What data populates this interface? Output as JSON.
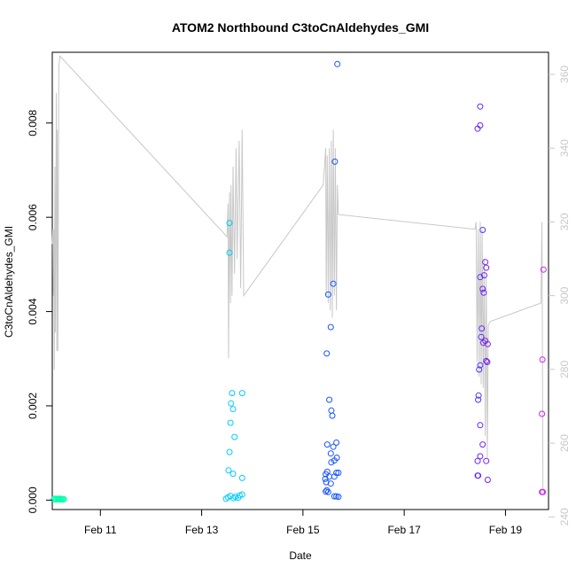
{
  "chart_data": {
    "type": "scatter",
    "title": "ATOM2 Northbound C3toCnAldehydes_GMI",
    "xlabel": "Date",
    "ylabel": "C3toCnAldehydes_GMI",
    "xlim": [
      10.05,
      19.85
    ],
    "ylim": [
      -0.0002,
      0.0095
    ],
    "y2lim": [
      242,
      366
    ],
    "grid": false,
    "legend": "none",
    "x_ticks": [
      {
        "value": 11,
        "label": "Feb 11"
      },
      {
        "value": 13,
        "label": "Feb 13"
      },
      {
        "value": 15,
        "label": "Feb 15"
      },
      {
        "value": 17,
        "label": "Feb 17"
      },
      {
        "value": 19,
        "label": "Feb 19"
      }
    ],
    "y_ticks": [
      {
        "value": 0.0,
        "label": "0.000"
      },
      {
        "value": 0.002,
        "label": "0.002"
      },
      {
        "value": 0.004,
        "label": "0.004"
      },
      {
        "value": 0.006,
        "label": "0.006"
      },
      {
        "value": 0.008,
        "label": "0.008"
      }
    ],
    "y2_ticks": [
      {
        "value": 240,
        "label": "240"
      },
      {
        "value": 260,
        "label": "260"
      },
      {
        "value": 280,
        "label": "280"
      },
      {
        "value": 300,
        "label": "300"
      },
      {
        "value": 320,
        "label": "320"
      },
      {
        "value": 340,
        "label": "340"
      },
      {
        "value": 360,
        "label": "360"
      }
    ],
    "colors": {
      "line": "#c8c8c8",
      "axis": "#000000",
      "right_axis": "#c8c8c8"
    },
    "points": [
      {
        "x": 10.08,
        "y": 2e-05,
        "color": "#00ffb0"
      },
      {
        "x": 10.1,
        "y": 3e-05,
        "color": "#00ffb0"
      },
      {
        "x": 10.12,
        "y": 1e-05,
        "color": "#00ffb0"
      },
      {
        "x": 10.14,
        "y": 2e-05,
        "color": "#00ffb0"
      },
      {
        "x": 10.16,
        "y": 3e-05,
        "color": "#00ffb0"
      },
      {
        "x": 10.18,
        "y": 2e-05,
        "color": "#00ffb0"
      },
      {
        "x": 10.2,
        "y": 1e-05,
        "color": "#00ffb0"
      },
      {
        "x": 10.22,
        "y": 3e-05,
        "color": "#00ffb0"
      },
      {
        "x": 10.24,
        "y": 2e-05,
        "color": "#00ffb0"
      },
      {
        "x": 10.26,
        "y": 1e-05,
        "color": "#00ffb0"
      },
      {
        "x": 10.28,
        "y": 2e-05,
        "color": "#00ffb0"
      },
      {
        "x": 13.55,
        "y": 0.00588,
        "color": "#00ccff"
      },
      {
        "x": 13.55,
        "y": 0.00525,
        "color": "#00ccff"
      },
      {
        "x": 13.6,
        "y": 0.00227,
        "color": "#00ccff"
      },
      {
        "x": 13.58,
        "y": 0.00205,
        "color": "#00ccff"
      },
      {
        "x": 13.62,
        "y": 0.00193,
        "color": "#00ccff"
      },
      {
        "x": 13.57,
        "y": 0.00164,
        "color": "#00ccff"
      },
      {
        "x": 13.65,
        "y": 0.00134,
        "color": "#00ccff"
      },
      {
        "x": 13.55,
        "y": 0.00102,
        "color": "#00ccff"
      },
      {
        "x": 13.53,
        "y": 0.00063,
        "color": "#00ccff"
      },
      {
        "x": 13.62,
        "y": 0.00056,
        "color": "#00ccff"
      },
      {
        "x": 13.8,
        "y": 0.00227,
        "color": "#00ccff"
      },
      {
        "x": 13.8,
        "y": 0.00047,
        "color": "#00ccff"
      },
      {
        "x": 13.48,
        "y": 3e-05,
        "color": "#00ccff"
      },
      {
        "x": 13.52,
        "y": 6e-05,
        "color": "#00ccff"
      },
      {
        "x": 13.57,
        "y": 9e-05,
        "color": "#00ccff"
      },
      {
        "x": 13.63,
        "y": 4e-05,
        "color": "#00ccff"
      },
      {
        "x": 13.67,
        "y": 7e-05,
        "color": "#00ccff"
      },
      {
        "x": 13.72,
        "y": 5e-05,
        "color": "#00ccff"
      },
      {
        "x": 13.75,
        "y": 0.0001,
        "color": "#00ccff"
      },
      {
        "x": 13.8,
        "y": 0.00012,
        "color": "#00ccff"
      },
      {
        "x": 15.68,
        "y": 0.00925,
        "color": "#1a55ff"
      },
      {
        "x": 15.63,
        "y": 0.00718,
        "color": "#1a55ff"
      },
      {
        "x": 15.6,
        "y": 0.00459,
        "color": "#1a55ff"
      },
      {
        "x": 15.5,
        "y": 0.00436,
        "color": "#1a55ff"
      },
      {
        "x": 15.55,
        "y": 0.00367,
        "color": "#1a55ff"
      },
      {
        "x": 15.47,
        "y": 0.00311,
        "color": "#1a55ff"
      },
      {
        "x": 15.52,
        "y": 0.00213,
        "color": "#1a55ff"
      },
      {
        "x": 15.56,
        "y": 0.0019,
        "color": "#1a55ff"
      },
      {
        "x": 15.58,
        "y": 0.00179,
        "color": "#1a55ff"
      },
      {
        "x": 15.48,
        "y": 0.00118,
        "color": "#1a55ff"
      },
      {
        "x": 15.6,
        "y": 0.00113,
        "color": "#1a55ff"
      },
      {
        "x": 15.66,
        "y": 0.00122,
        "color": "#1a55ff"
      },
      {
        "x": 15.55,
        "y": 0.00099,
        "color": "#1a55ff"
      },
      {
        "x": 15.67,
        "y": 0.0009,
        "color": "#1a55ff"
      },
      {
        "x": 15.62,
        "y": 0.00084,
        "color": "#1a55ff"
      },
      {
        "x": 15.56,
        "y": 0.0008,
        "color": "#1a55ff"
      },
      {
        "x": 15.45,
        "y": 0.00055,
        "color": "#1a55ff"
      },
      {
        "x": 15.48,
        "y": 0.0006,
        "color": "#1a55ff"
      },
      {
        "x": 15.52,
        "y": 0.0005,
        "color": "#1a55ff"
      },
      {
        "x": 15.62,
        "y": 0.0005,
        "color": "#1a55ff"
      },
      {
        "x": 15.66,
        "y": 0.00058,
        "color": "#1a55ff"
      },
      {
        "x": 15.7,
        "y": 0.00058,
        "color": "#1a55ff"
      },
      {
        "x": 15.44,
        "y": 0.00045,
        "color": "#1a55ff"
      },
      {
        "x": 15.46,
        "y": 0.00038,
        "color": "#1a55ff"
      },
      {
        "x": 15.55,
        "y": 0.00035,
        "color": "#1a55ff"
      },
      {
        "x": 15.45,
        "y": 0.00018,
        "color": "#1a55ff"
      },
      {
        "x": 15.5,
        "y": 0.00017,
        "color": "#1a55ff"
      },
      {
        "x": 15.47,
        "y": 0.00021,
        "color": "#1a55ff"
      },
      {
        "x": 15.62,
        "y": 8e-05,
        "color": "#1a55ff"
      },
      {
        "x": 15.66,
        "y": 8e-05,
        "color": "#1a55ff"
      },
      {
        "x": 15.7,
        "y": 7e-05,
        "color": "#1a55ff"
      },
      {
        "x": 18.5,
        "y": 0.00835,
        "color": "#6622ff"
      },
      {
        "x": 18.45,
        "y": 0.00788,
        "color": "#6622ff"
      },
      {
        "x": 18.5,
        "y": 0.00795,
        "color": "#6622ff"
      },
      {
        "x": 18.55,
        "y": 0.00573,
        "color": "#5533ff"
      },
      {
        "x": 18.6,
        "y": 0.00505,
        "color": "#7722ee"
      },
      {
        "x": 18.62,
        "y": 0.00493,
        "color": "#7722ee"
      },
      {
        "x": 18.5,
        "y": 0.00473,
        "color": "#5533ff"
      },
      {
        "x": 18.58,
        "y": 0.00477,
        "color": "#7722ee"
      },
      {
        "x": 18.55,
        "y": 0.00448,
        "color": "#7722ee"
      },
      {
        "x": 18.57,
        "y": 0.0044,
        "color": "#6622ff"
      },
      {
        "x": 18.53,
        "y": 0.00364,
        "color": "#6622ff"
      },
      {
        "x": 18.52,
        "y": 0.00346,
        "color": "#5533ff"
      },
      {
        "x": 18.6,
        "y": 0.00338,
        "color": "#7722ee"
      },
      {
        "x": 18.56,
        "y": 0.00334,
        "color": "#7722ee"
      },
      {
        "x": 18.65,
        "y": 0.00331,
        "color": "#7722ee"
      },
      {
        "x": 18.62,
        "y": 0.00295,
        "color": "#7722ee"
      },
      {
        "x": 18.64,
        "y": 0.00293,
        "color": "#7722ee"
      },
      {
        "x": 18.5,
        "y": 0.00286,
        "color": "#5533ff"
      },
      {
        "x": 18.48,
        "y": 0.00277,
        "color": "#5533ff"
      },
      {
        "x": 18.47,
        "y": 0.00222,
        "color": "#5533ff"
      },
      {
        "x": 18.46,
        "y": 0.00213,
        "color": "#5533ff"
      },
      {
        "x": 18.5,
        "y": 0.00159,
        "color": "#6622ff"
      },
      {
        "x": 18.55,
        "y": 0.00118,
        "color": "#7722ee"
      },
      {
        "x": 18.5,
        "y": 0.00093,
        "color": "#6622ff"
      },
      {
        "x": 18.45,
        "y": 0.00083,
        "color": "#6622ff"
      },
      {
        "x": 18.62,
        "y": 0.00083,
        "color": "#7722ee"
      },
      {
        "x": 18.45,
        "y": 0.00052,
        "color": "#6622ff"
      },
      {
        "x": 18.46,
        "y": 0.00052,
        "color": "#6622ff"
      },
      {
        "x": 18.65,
        "y": 0.00043,
        "color": "#7722ee"
      },
      {
        "x": 19.75,
        "y": 0.00489,
        "color": "#cc22ee"
      },
      {
        "x": 19.73,
        "y": 0.00298,
        "color": "#cc22ee"
      },
      {
        "x": 19.72,
        "y": 0.00183,
        "color": "#cc22ee"
      },
      {
        "x": 19.72,
        "y": 0.00017,
        "color": "#cc22ee"
      },
      {
        "x": 19.74,
        "y": 0.00017,
        "color": "#cc22ee"
      }
    ],
    "line_secondary": [
      {
        "x": 10.05,
        "y2": 314
      },
      {
        "x": 10.06,
        "y2": 318
      },
      {
        "x": 10.07,
        "y2": 300
      },
      {
        "x": 10.08,
        "y2": 318
      },
      {
        "x": 10.09,
        "y2": 280
      },
      {
        "x": 10.1,
        "y2": 335
      },
      {
        "x": 10.11,
        "y2": 290
      },
      {
        "x": 10.13,
        "y2": 355
      },
      {
        "x": 10.14,
        "y2": 285
      },
      {
        "x": 10.15,
        "y2": 345
      },
      {
        "x": 10.16,
        "y2": 285
      },
      {
        "x": 10.18,
        "y2": 362
      },
      {
        "x": 10.2,
        "y2": 365
      },
      {
        "x": 13.5,
        "y2": 316
      },
      {
        "x": 13.52,
        "y2": 325
      },
      {
        "x": 13.53,
        "y2": 283
      },
      {
        "x": 13.55,
        "y2": 328
      },
      {
        "x": 13.57,
        "y2": 298
      },
      {
        "x": 13.58,
        "y2": 330
      },
      {
        "x": 13.6,
        "y2": 300
      },
      {
        "x": 13.62,
        "y2": 335
      },
      {
        "x": 13.65,
        "y2": 306
      },
      {
        "x": 13.68,
        "y2": 340
      },
      {
        "x": 13.7,
        "y2": 310
      },
      {
        "x": 13.74,
        "y2": 342
      },
      {
        "x": 13.77,
        "y2": 302
      },
      {
        "x": 13.8,
        "y2": 345
      },
      {
        "x": 13.83,
        "y2": 300
      },
      {
        "x": 15.4,
        "y2": 330
      },
      {
        "x": 15.45,
        "y2": 340
      },
      {
        "x": 15.46,
        "y2": 300
      },
      {
        "x": 15.48,
        "y2": 338
      },
      {
        "x": 15.5,
        "y2": 298
      },
      {
        "x": 15.52,
        "y2": 340
      },
      {
        "x": 15.54,
        "y2": 296
      },
      {
        "x": 15.56,
        "y2": 342
      },
      {
        "x": 15.58,
        "y2": 294
      },
      {
        "x": 15.6,
        "y2": 345
      },
      {
        "x": 15.62,
        "y2": 300
      },
      {
        "x": 15.64,
        "y2": 340
      },
      {
        "x": 15.66,
        "y2": 296
      },
      {
        "x": 15.68,
        "y2": 330
      },
      {
        "x": 15.7,
        "y2": 322
      },
      {
        "x": 18.4,
        "y2": 318
      },
      {
        "x": 18.42,
        "y2": 320
      },
      {
        "x": 18.44,
        "y2": 282
      },
      {
        "x": 18.46,
        "y2": 318
      },
      {
        "x": 18.48,
        "y2": 278
      },
      {
        "x": 18.5,
        "y2": 320
      },
      {
        "x": 18.52,
        "y2": 276
      },
      {
        "x": 18.54,
        "y2": 318
      },
      {
        "x": 18.56,
        "y2": 275
      },
      {
        "x": 18.58,
        "y2": 310
      },
      {
        "x": 18.6,
        "y2": 262
      },
      {
        "x": 18.62,
        "y2": 305
      },
      {
        "x": 18.64,
        "y2": 256
      },
      {
        "x": 18.66,
        "y2": 292
      },
      {
        "x": 18.7,
        "y2": 293
      },
      {
        "x": 19.7,
        "y2": 298
      },
      {
        "x": 19.72,
        "y2": 320
      },
      {
        "x": 19.74,
        "y2": 246
      }
    ]
  }
}
